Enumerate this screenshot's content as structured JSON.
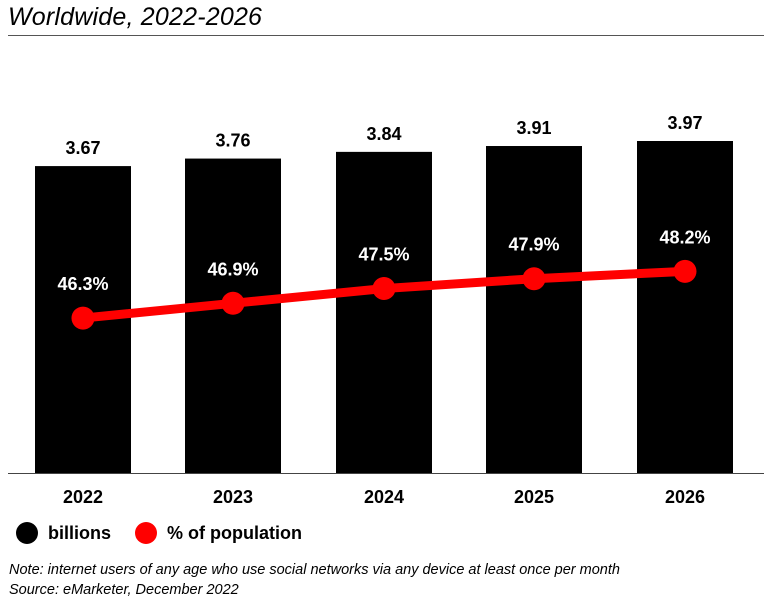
{
  "title": "Worldwide, 2022-2026",
  "colors": {
    "bar": "#000000",
    "line": "#ff0000",
    "text": "#000000",
    "line_label": "#ffffff"
  },
  "legend": [
    {
      "label": "billions",
      "color": "#000000"
    },
    {
      "label": "% of population",
      "color": "#ff0000"
    }
  ],
  "notes": {
    "note": "Note: internet users of any age who use social networks via any device at least once per month",
    "source": "Source: eMarketer, December 2022"
  },
  "chart_data": {
    "type": "bar",
    "title": "Worldwide, 2022-2026",
    "categories": [
      "2022",
      "2023",
      "2024",
      "2025",
      "2026"
    ],
    "series": [
      {
        "name": "billions",
        "type": "bar",
        "values": [
          3.67,
          3.76,
          3.84,
          3.91,
          3.97
        ],
        "labels": [
          "3.67",
          "3.76",
          "3.84",
          "3.91",
          "3.97"
        ]
      },
      {
        "name": "% of population",
        "type": "line",
        "values": [
          46.3,
          46.9,
          47.5,
          47.9,
          48.2
        ],
        "labels": [
          "46.3%",
          "46.9%",
          "47.5%",
          "47.9%",
          "48.2%"
        ]
      }
    ],
    "bar_axis_range": [
      0,
      3.97
    ],
    "line_axis_range": [
      40.0,
      53.5
    ],
    "grid": false,
    "legend_position": "bottom-left"
  }
}
